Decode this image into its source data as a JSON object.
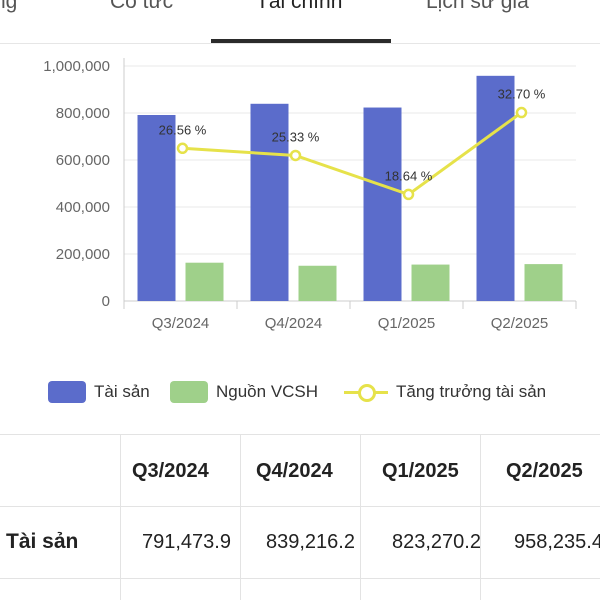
{
  "tabs": {
    "items": [
      {
        "label": "ng",
        "active": false
      },
      {
        "label": "Cổ tức",
        "active": false
      },
      {
        "label": "Tài chính",
        "active": true
      },
      {
        "label": "Lịch sử giá",
        "active": false
      }
    ]
  },
  "chart_data": {
    "type": "bar",
    "categories": [
      "Q3/2024",
      "Q4/2024",
      "Q1/2025",
      "Q2/2025"
    ],
    "ylim": [
      0,
      1000000
    ],
    "yticks": [
      "0",
      "200,000",
      "400,000",
      "600,000",
      "800,000",
      "1,000,000"
    ],
    "grid": true,
    "legend_position": "bottom",
    "series": [
      {
        "name": "Tài sản",
        "type": "bar",
        "color": "#5b6ccb",
        "values": [
          791473.9,
          839216.2,
          823270.2,
          958235.4
        ]
      },
      {
        "name": "Nguồn VCSH",
        "type": "bar",
        "color": "#9fd08a",
        "values": [
          163000,
          150000,
          155000,
          157000
        ]
      },
      {
        "name": "Tăng trưởng tài sản",
        "type": "line",
        "color": "#e6e24a",
        "values": [
          26.56,
          25.33,
          18.64,
          32.7
        ],
        "labels": [
          "26.56 %",
          "25.33 %",
          "18.64 %",
          "32.70 %"
        ]
      }
    ]
  },
  "legend": {
    "items": [
      {
        "label": "Tài sản",
        "color": "#5b6ccb"
      },
      {
        "label": "Nguồn VCSH",
        "color": "#9fd08a"
      },
      {
        "label": "Tăng trưởng tài sản",
        "color": "#e6e24a"
      }
    ]
  },
  "table": {
    "headers": [
      "Q3/2024",
      "Q4/2024",
      "Q1/2025",
      "Q2/2025"
    ],
    "rows": [
      {
        "label": "Tài sản",
        "values": [
          "791,473.9",
          "839,216.2",
          "823,270.2",
          "958,235.4"
        ]
      }
    ]
  }
}
